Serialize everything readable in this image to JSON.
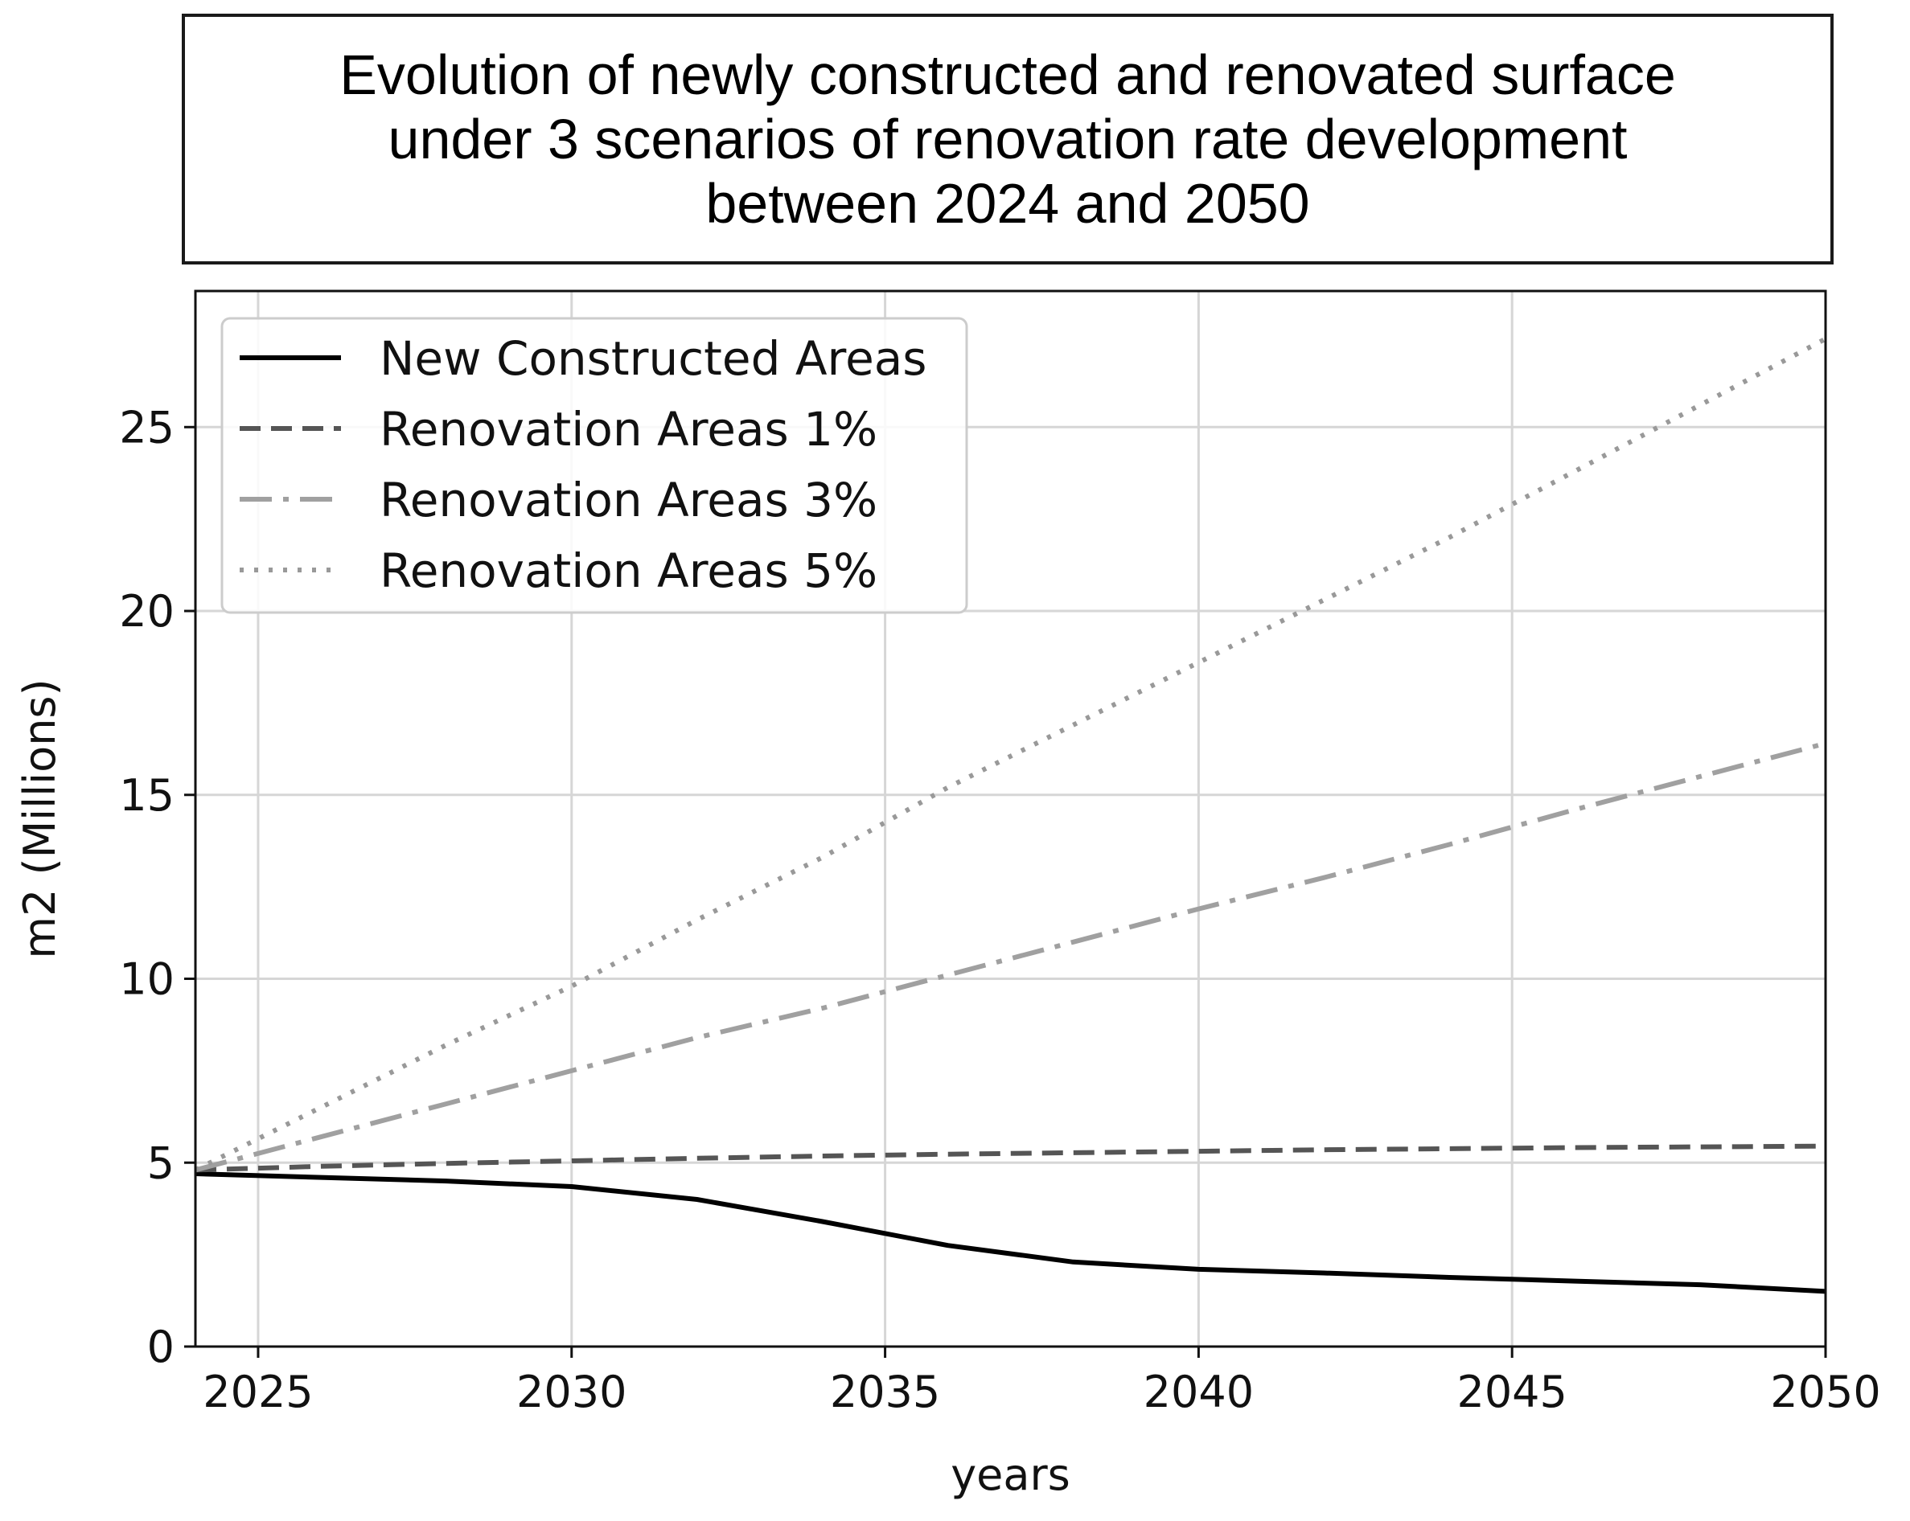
{
  "chart_data": {
    "type": "line",
    "title_lines": [
      "Evolution of newly constructed and renovated surface",
      "under 3 scenarios of renovation rate development",
      "between 2024 and 2050"
    ],
    "xlabel": "years",
    "ylabel": "m2 (Millions)",
    "xlim": [
      2024,
      2050
    ],
    "ylim": [
      0,
      28.7
    ],
    "xticks": [
      2025,
      2030,
      2035,
      2040,
      2045,
      2050
    ],
    "yticks": [
      0,
      5,
      10,
      15,
      20,
      25
    ],
    "grid": true,
    "legend_position": "top-left",
    "x": [
      2024,
      2026,
      2028,
      2030,
      2032,
      2034,
      2036,
      2038,
      2040,
      2042,
      2044,
      2046,
      2048,
      2050
    ],
    "series": [
      {
        "name": "New Constructed Areas",
        "color": "#000000",
        "style": "solid",
        "values": [
          4.7,
          4.6,
          4.5,
          4.35,
          4.0,
          3.4,
          2.75,
          2.3,
          2.1,
          2.0,
          1.88,
          1.78,
          1.68,
          1.5
        ]
      },
      {
        "name": "Renovation Areas 1%",
        "color": "#555555",
        "style": "dashed",
        "values": [
          4.8,
          4.9,
          4.98,
          5.05,
          5.12,
          5.18,
          5.23,
          5.27,
          5.31,
          5.35,
          5.38,
          5.41,
          5.43,
          5.45
        ]
      },
      {
        "name": "Renovation Areas 3%",
        "color": "#a0a0a0",
        "style": "dashdot",
        "values": [
          4.8,
          5.7,
          6.6,
          7.5,
          8.4,
          9.2,
          10.1,
          11.0,
          11.9,
          12.75,
          13.65,
          14.6,
          15.5,
          16.4
        ]
      },
      {
        "name": "Renovation Areas 5%",
        "color": "#999999",
        "style": "dotted",
        "values": [
          4.8,
          6.5,
          8.2,
          9.8,
          11.6,
          13.3,
          15.2,
          16.9,
          18.6,
          20.3,
          22.0,
          23.8,
          25.6,
          27.4
        ]
      }
    ]
  }
}
